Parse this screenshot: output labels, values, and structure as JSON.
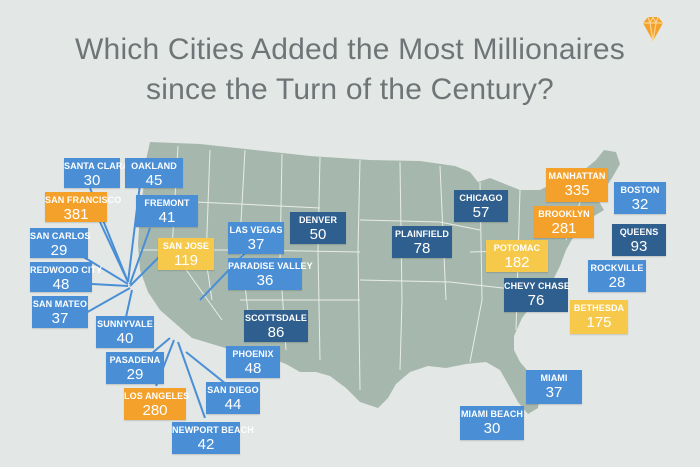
{
  "title": {
    "line1": "Which Cities Added the Most Millionaires",
    "line2": "since the Turn of the Century?"
  },
  "colors": {
    "background": "#e3e7e5",
    "land": "#a6b8ad",
    "state_lines": "#e7ece9",
    "light_blue": "#4a8fd6",
    "dark_blue": "#2f5f8e",
    "orange": "#f4a12c",
    "yellow": "#f6c94a",
    "leader_lines": "#4a8fd6",
    "icon": "#f4a12c"
  },
  "icon": "diamond-icon",
  "cities": [
    {
      "id": "santa-clara",
      "name": "SANTA CLARA",
      "value": "30",
      "color": "light_blue"
    },
    {
      "id": "oakland",
      "name": "OAKLAND",
      "value": "45",
      "color": "light_blue"
    },
    {
      "id": "san-francisco",
      "name": "SAN FRANCISCO",
      "value": "381",
      "color": "orange"
    },
    {
      "id": "fremont",
      "name": "FREMONT",
      "value": "41",
      "color": "light_blue"
    },
    {
      "id": "san-carlos",
      "name": "SAN CARLOS",
      "value": "29",
      "color": "light_blue"
    },
    {
      "id": "san-jose",
      "name": "SAN JOSE",
      "value": "119",
      "color": "yellow"
    },
    {
      "id": "redwood-city",
      "name": "REDWOOD CITY",
      "value": "48",
      "color": "light_blue"
    },
    {
      "id": "san-mateo",
      "name": "SAN MATEO",
      "value": "37",
      "color": "light_blue"
    },
    {
      "id": "sunnyvale",
      "name": "SUNNYVALE",
      "value": "40",
      "color": "light_blue"
    },
    {
      "id": "pasadena",
      "name": "PASADENA",
      "value": "29",
      "color": "light_blue"
    },
    {
      "id": "los-angeles",
      "name": "LOS ANGELES",
      "value": "280",
      "color": "orange"
    },
    {
      "id": "newport-beach",
      "name": "NEWPORT BEACH",
      "value": "42",
      "color": "light_blue"
    },
    {
      "id": "san-diego",
      "name": "SAN DIEGO",
      "value": "44",
      "color": "light_blue"
    },
    {
      "id": "las-vegas",
      "name": "LAS VEGAS",
      "value": "37",
      "color": "light_blue"
    },
    {
      "id": "paradise-valley",
      "name": "PARADISE VALLEY",
      "value": "36",
      "color": "light_blue"
    },
    {
      "id": "scottsdale",
      "name": "SCOTTSDALE",
      "value": "86",
      "color": "dark_blue"
    },
    {
      "id": "phoenix",
      "name": "PHOENIX",
      "value": "48",
      "color": "light_blue"
    },
    {
      "id": "denver",
      "name": "DENVER",
      "value": "50",
      "color": "dark_blue"
    },
    {
      "id": "chicago",
      "name": "CHICAGO",
      "value": "57",
      "color": "dark_blue"
    },
    {
      "id": "plainfield",
      "name": "PLAINFIELD",
      "value": "78",
      "color": "dark_blue"
    },
    {
      "id": "manhattan",
      "name": "MANHATTAN",
      "value": "335",
      "color": "orange"
    },
    {
      "id": "boston",
      "name": "BOSTON",
      "value": "32",
      "color": "light_blue"
    },
    {
      "id": "brooklyn",
      "name": "BROOKLYN",
      "value": "281",
      "color": "orange"
    },
    {
      "id": "queens",
      "name": "QUEENS",
      "value": "93",
      "color": "dark_blue"
    },
    {
      "id": "potomac",
      "name": "POTOMAC",
      "value": "182",
      "color": "yellow"
    },
    {
      "id": "rockville",
      "name": "ROCKVILLE",
      "value": "28",
      "color": "light_blue"
    },
    {
      "id": "chevy-chase",
      "name": "CHEVY CHASE",
      "value": "76",
      "color": "dark_blue"
    },
    {
      "id": "bethesda",
      "name": "BETHESDA",
      "value": "175",
      "color": "yellow"
    },
    {
      "id": "miami",
      "name": "MIAMI",
      "value": "37",
      "color": "light_blue"
    },
    {
      "id": "miami-beach",
      "name": "MIAMI BEACH",
      "value": "30",
      "color": "light_blue"
    }
  ]
}
